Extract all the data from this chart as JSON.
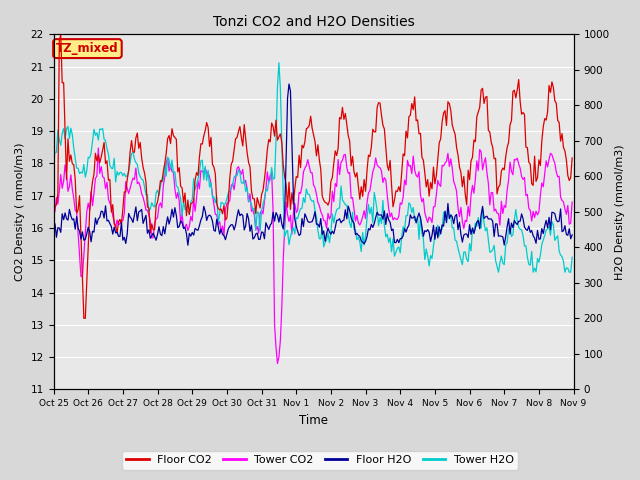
{
  "title": "Tonzi CO2 and H2O Densities",
  "xlabel": "Time",
  "ylabel_left": "CO2 Density ( mmol/m3)",
  "ylabel_right": "H2O Density (mmol/m3)",
  "ylim_left": [
    11.0,
    22.0
  ],
  "ylim_right": [
    0,
    1000
  ],
  "yticks_left": [
    11.0,
    12.0,
    13.0,
    14.0,
    15.0,
    16.0,
    17.0,
    18.0,
    19.0,
    20.0,
    21.0,
    22.0
  ],
  "yticks_right": [
    0,
    100,
    200,
    300,
    400,
    500,
    600,
    700,
    800,
    900,
    1000
  ],
  "xtick_labels": [
    "Oct 25",
    "Oct 26",
    "Oct 27",
    "Oct 28",
    "Oct 29",
    "Oct 30",
    "Oct 31",
    "Nov 1",
    "Nov 2",
    "Nov 3",
    "Nov 4",
    "Nov 5",
    "Nov 6",
    "Nov 7",
    "Nov 8",
    "Nov 9"
  ],
  "annotation_text": "TZ_mixed",
  "annotation_color": "#cc0000",
  "annotation_bg": "#ffee88",
  "annotation_border": "#cc0000",
  "colors": {
    "floor_co2": "#dd0000",
    "tower_co2": "#ff00ff",
    "floor_h2o": "#000099",
    "tower_h2o": "#00cccc"
  },
  "legend_labels": [
    "Floor CO2",
    "Tower CO2",
    "Floor H2O",
    "Tower H2O"
  ],
  "background_color": "#d8d8d8",
  "plot_bg": "#e8e8e8",
  "grid_color": "#ffffff",
  "n_days": 15
}
